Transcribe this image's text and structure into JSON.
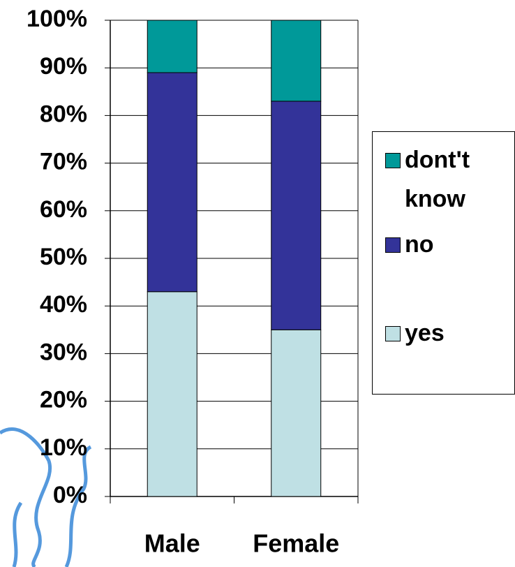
{
  "chart_data": {
    "type": "stacked_bar",
    "categories": [
      "Male",
      "Female"
    ],
    "series": [
      {
        "name": "yes",
        "color": "#bfe0e4",
        "values": [
          43,
          35
        ]
      },
      {
        "name": "no",
        "color": "#333399",
        "values": [
          46,
          48
        ]
      },
      {
        "name": "dont't know",
        "color": "#009999",
        "values": [
          11,
          17
        ]
      }
    ],
    "ylim": [
      0,
      100
    ],
    "yticks": [
      {
        "value": 0,
        "label": "0%"
      },
      {
        "value": 10,
        "label": "10%"
      },
      {
        "value": 20,
        "label": "20%"
      },
      {
        "value": 30,
        "label": "30%"
      },
      {
        "value": 40,
        "label": "40%"
      },
      {
        "value": 50,
        "label": "50%"
      },
      {
        "value": 60,
        "label": "60%"
      },
      {
        "value": 70,
        "label": "70%"
      },
      {
        "value": 80,
        "label": "80%"
      },
      {
        "value": 90,
        "label": "90%"
      },
      {
        "value": 100,
        "label": "100%"
      }
    ],
    "grid": true,
    "legend": "right"
  }
}
